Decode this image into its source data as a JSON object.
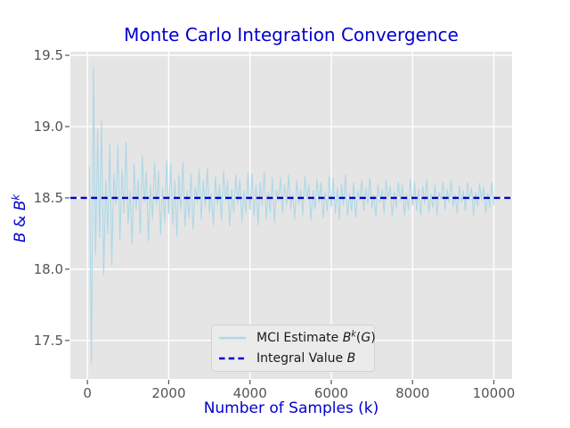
{
  "chart_data": {
    "type": "line",
    "title": "Monte Carlo Integration Convergence",
    "xlabel": "Number of Samples (k)",
    "ylabel": "B & B^k",
    "ylabel_parts": [
      {
        "t": "B",
        "i": true
      },
      {
        "t": " & ",
        "i": false
      },
      {
        "t": "B",
        "i": true
      },
      {
        "t": "k",
        "i": true,
        "sup": true
      }
    ],
    "xlim": [
      -420,
      10450
    ],
    "ylim": [
      17.23,
      19.525
    ],
    "grid": true,
    "plot_background": "#e5e5e5",
    "gridline_color": "#ffffff",
    "tick_color": "#555555",
    "x_ticks": [
      {
        "value": 0,
        "label": "0"
      },
      {
        "value": 2000,
        "label": "2000"
      },
      {
        "value": 4000,
        "label": "4000"
      },
      {
        "value": 6000,
        "label": "6000"
      },
      {
        "value": 8000,
        "label": "8000"
      },
      {
        "value": 10000,
        "label": "10000"
      }
    ],
    "y_ticks": [
      {
        "value": 17.5,
        "label": "17.5"
      },
      {
        "value": 18.0,
        "label": "18.0"
      },
      {
        "value": 18.5,
        "label": "18.5"
      },
      {
        "value": 19.0,
        "label": "19.0"
      },
      {
        "value": 19.5,
        "label": "19.5"
      }
    ],
    "series": [
      {
        "name": "MCI Estimate B^k(G)",
        "kind": "noisy-line",
        "color": "#add8e6",
        "line_width": 1.1,
        "x_start": 50,
        "x_step": 50,
        "y": [
          18.72,
          17.34,
          19.42,
          18.1,
          18.98,
          18.22,
          19.05,
          17.96,
          18.62,
          18.25,
          18.88,
          18.03,
          18.67,
          18.45,
          18.87,
          18.21,
          18.7,
          18.39,
          18.89,
          18.32,
          18.55,
          18.18,
          18.74,
          18.42,
          18.63,
          18.25,
          18.8,
          18.47,
          18.68,
          18.2,
          18.59,
          18.35,
          18.75,
          18.45,
          18.69,
          18.24,
          18.57,
          18.33,
          18.76,
          18.39,
          18.74,
          18.31,
          18.62,
          18.23,
          18.66,
          18.41,
          18.75,
          18.3,
          18.55,
          18.36,
          18.67,
          18.28,
          18.58,
          18.47,
          18.7,
          18.35,
          18.62,
          18.44,
          18.71,
          18.4,
          18.53,
          18.31,
          18.65,
          18.45,
          18.59,
          18.34,
          18.69,
          18.48,
          18.62,
          18.3,
          18.56,
          18.4,
          18.66,
          18.46,
          18.63,
          18.33,
          18.55,
          18.39,
          18.68,
          18.42,
          18.67,
          18.37,
          18.59,
          18.31,
          18.61,
          18.44,
          18.68,
          18.35,
          18.54,
          18.4,
          18.64,
          18.33,
          18.56,
          18.48,
          18.64,
          18.39,
          18.59,
          18.45,
          18.66,
          18.42,
          18.53,
          18.35,
          18.62,
          18.46,
          18.56,
          18.38,
          18.65,
          18.49,
          18.59,
          18.34,
          18.55,
          18.42,
          18.63,
          18.47,
          18.61,
          18.36,
          18.54,
          18.41,
          18.65,
          18.44,
          18.64,
          18.39,
          18.57,
          18.35,
          18.6,
          18.45,
          18.66,
          18.37,
          18.53,
          18.41,
          18.61,
          18.36,
          18.55,
          18.48,
          18.62,
          18.41,
          18.57,
          18.46,
          18.64,
          18.43,
          18.52,
          18.37,
          18.6,
          18.47,
          18.56,
          18.39,
          18.62,
          18.49,
          18.58,
          18.37,
          18.54,
          18.43,
          18.61,
          18.48,
          18.59,
          18.38,
          18.53,
          18.42,
          18.63,
          18.45,
          18.61,
          18.41,
          18.56,
          18.38,
          18.58,
          18.46,
          18.63,
          18.4,
          18.53,
          18.43,
          18.59,
          18.38,
          18.54,
          18.49,
          18.61,
          18.42,
          18.56,
          18.47,
          18.62,
          18.44,
          18.52,
          18.39,
          18.58,
          18.47,
          18.55,
          18.41,
          18.61,
          18.49,
          18.57,
          18.38,
          18.54,
          18.44,
          18.6,
          18.48,
          18.58,
          18.39,
          18.53,
          18.43,
          18.61,
          18.45
        ]
      },
      {
        "name": "Integral Value B",
        "kind": "hline",
        "color": "#0000cd",
        "style": "dashed",
        "line_width": 2.4,
        "value": 18.5
      }
    ],
    "legend": {
      "position": "lower center",
      "items": [
        {
          "swatch": "solid",
          "color": "#add8e6",
          "label_parts": [
            {
              "t": "MCI Estimate ",
              "i": false
            },
            {
              "t": "B",
              "i": true
            },
            {
              "t": "k",
              "i": true,
              "sup": true
            },
            {
              "t": "(",
              "i": false
            },
            {
              "t": "G",
              "i": true
            },
            {
              "t": ")",
              "i": false
            }
          ]
        },
        {
          "swatch": "dashed",
          "color": "#0000cd",
          "label_parts": [
            {
              "t": "Integral Value ",
              "i": false
            },
            {
              "t": "B",
              "i": true
            }
          ]
        }
      ]
    }
  },
  "colors": {
    "title": "#0000cd",
    "axis_label": "#0000cd",
    "tick_label": "#555555",
    "figure_background": "#ffffff",
    "legend_background": "#ebebeb",
    "legend_border": "#d2d2d2"
  }
}
